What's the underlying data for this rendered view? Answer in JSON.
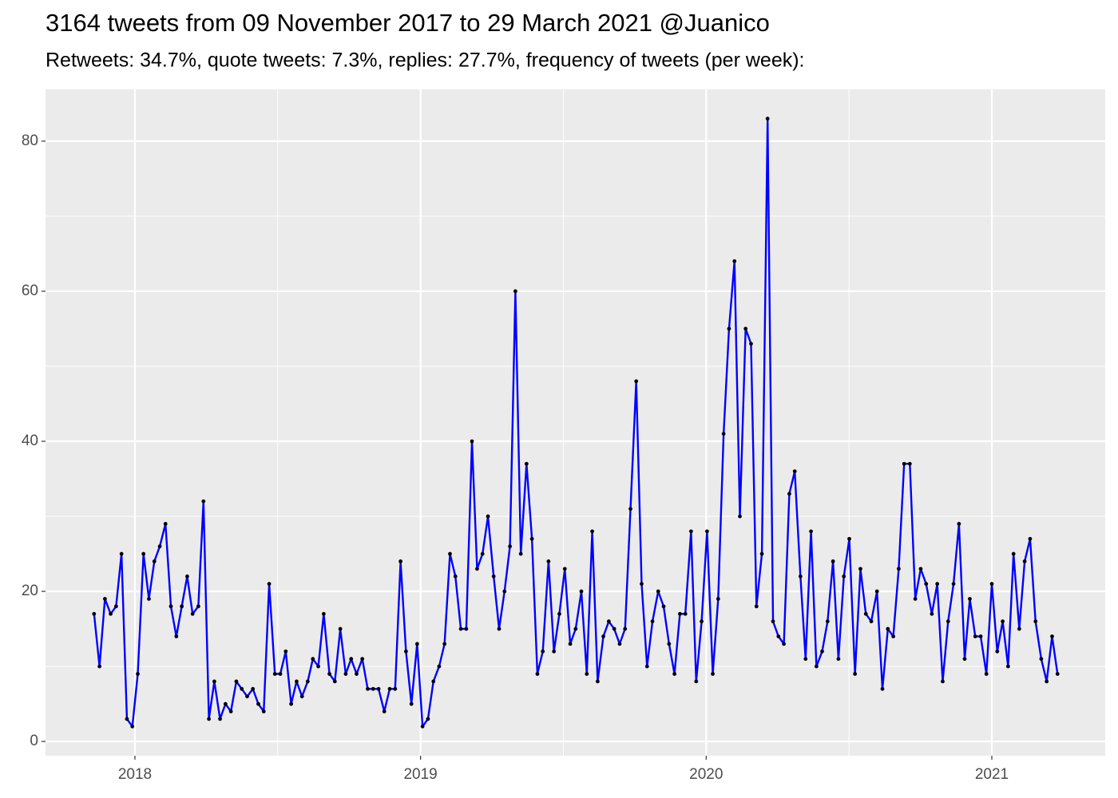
{
  "chart_data": {
    "type": "line",
    "title": "3164 tweets from 09 November 2017 to 29 March 2021 @Juanico",
    "subtitle": "Retweets: 34.7%, quote tweets: 7.3%, replies: 27.7%, frequency of tweets (per week):",
    "color": "#0000ff",
    "point_color": "#000000",
    "grid": true,
    "xlim": [
      2017.687,
      2021.397
    ],
    "xticks": [
      2018,
      2019,
      2020,
      2021
    ],
    "ylim": [
      -1.9,
      86.9
    ],
    "yticks": [
      0,
      20,
      40,
      60,
      80
    ],
    "x": [
      2017.857,
      2017.876,
      2017.895,
      2017.915,
      2017.934,
      2017.953,
      2017.972,
      2017.991,
      2018.01,
      2018.03,
      2018.049,
      2018.068,
      2018.087,
      2018.107,
      2018.126,
      2018.145,
      2018.164,
      2018.183,
      2018.202,
      2018.222,
      2018.24,
      2018.259,
      2018.278,
      2018.298,
      2018.317,
      2018.336,
      2018.355,
      2018.374,
      2018.393,
      2018.413,
      2018.432,
      2018.451,
      2018.47,
      2018.49,
      2018.509,
      2018.528,
      2018.547,
      2018.566,
      2018.585,
      2018.605,
      2018.623,
      2018.642,
      2018.661,
      2018.681,
      2018.7,
      2018.719,
      2018.738,
      2018.757,
      2018.776,
      2018.796,
      2018.815,
      2018.834,
      2018.853,
      2018.873,
      2018.892,
      2018.911,
      2018.93,
      2018.949,
      2018.968,
      2018.988,
      2019.007,
      2019.026,
      2019.045,
      2019.065,
      2019.084,
      2019.103,
      2019.122,
      2019.141,
      2019.16,
      2019.18,
      2019.198,
      2019.217,
      2019.236,
      2019.256,
      2019.275,
      2019.294,
      2019.313,
      2019.332,
      2019.351,
      2019.371,
      2019.39,
      2019.409,
      2019.428,
      2019.448,
      2019.467,
      2019.486,
      2019.505,
      2019.524,
      2019.543,
      2019.563,
      2019.582,
      2019.601,
      2019.62,
      2019.64,
      2019.659,
      2019.678,
      2019.697,
      2019.716,
      2019.735,
      2019.755,
      2019.774,
      2019.793,
      2019.812,
      2019.832,
      2019.851,
      2019.87,
      2019.889,
      2019.908,
      2019.927,
      2019.947,
      2019.965,
      2019.984,
      2020.003,
      2020.023,
      2020.042,
      2020.061,
      2020.08,
      2020.099,
      2020.118,
      2020.138,
      2020.157,
      2020.176,
      2020.195,
      2020.215,
      2020.234,
      2020.253,
      2020.272,
      2020.291,
      2020.31,
      2020.33,
      2020.348,
      2020.367,
      2020.386,
      2020.406,
      2020.425,
      2020.444,
      2020.463,
      2020.482,
      2020.501,
      2020.521,
      2020.54,
      2020.559,
      2020.578,
      2020.598,
      2020.617,
      2020.636,
      2020.655,
      2020.674,
      2020.693,
      2020.713,
      2020.732,
      2020.751,
      2020.77,
      2020.79,
      2020.809,
      2020.828,
      2020.847,
      2020.866,
      2020.885,
      2020.905,
      2020.923,
      2020.942,
      2020.961,
      2020.981,
      2021.0,
      2021.019,
      2021.038,
      2021.057,
      2021.076,
      2021.096,
      2021.115,
      2021.134,
      2021.153,
      2021.173,
      2021.192,
      2021.211,
      2021.23
    ],
    "values": [
      17,
      10,
      19,
      17,
      18,
      25,
      3,
      2,
      9,
      25,
      19,
      24,
      26,
      29,
      18,
      14,
      18,
      22,
      17,
      18,
      32,
      3,
      8,
      3,
      5,
      4,
      8,
      7,
      6,
      7,
      5,
      4,
      21,
      9,
      9,
      12,
      5,
      8,
      6,
      8,
      11,
      10,
      17,
      9,
      8,
      15,
      9,
      11,
      9,
      11,
      7,
      7,
      7,
      4,
      7,
      7,
      24,
      12,
      5,
      13,
      2,
      3,
      8,
      10,
      13,
      25,
      22,
      15,
      15,
      40,
      23,
      25,
      30,
      22,
      15,
      20,
      26,
      60,
      25,
      37,
      27,
      9,
      12,
      24,
      12,
      17,
      23,
      13,
      15,
      20,
      9,
      28,
      8,
      14,
      16,
      15,
      13,
      15,
      31,
      48,
      21,
      10,
      16,
      20,
      18,
      13,
      9,
      17,
      17,
      28,
      8,
      16,
      28,
      9,
      19,
      41,
      55,
      64,
      30,
      55,
      53,
      18,
      25,
      83,
      16,
      14,
      13,
      33,
      36,
      22,
      11,
      28,
      10,
      12,
      16,
      24,
      11,
      22,
      27,
      9,
      23,
      17,
      16,
      20,
      7,
      15,
      14,
      23,
      37,
      37,
      19,
      23,
      21,
      17,
      21,
      8,
      16,
      21,
      29,
      11,
      19,
      14,
      14,
      9,
      21,
      12,
      16,
      10,
      25,
      15,
      24,
      27,
      16,
      11,
      8,
      14,
      9
    ]
  }
}
